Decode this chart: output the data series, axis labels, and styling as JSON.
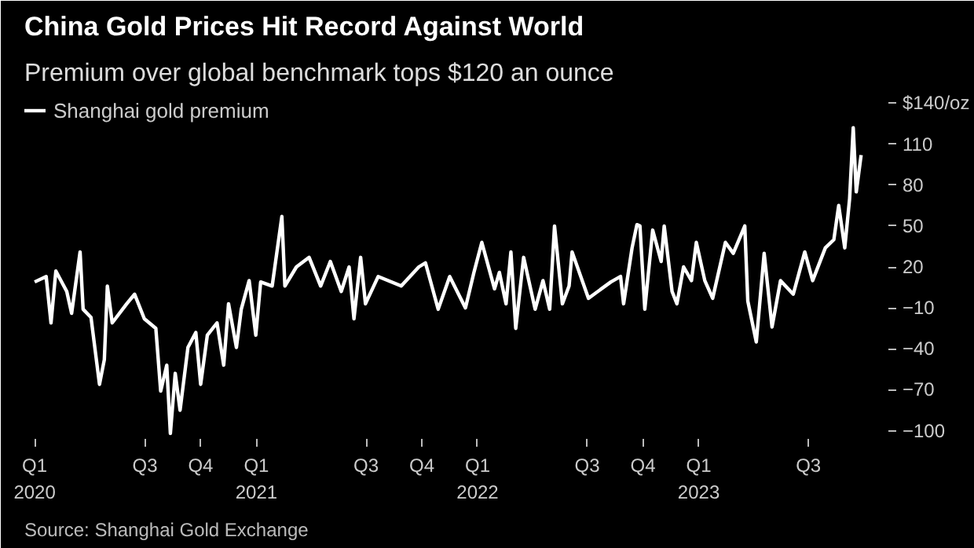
{
  "chart_data": {
    "type": "line",
    "title": "China Gold Prices Hit Record Against World",
    "subtitle": "Premium over global benchmark tops $120 an ounce",
    "annotations": [
      "Source: Shanghai Gold Exchange"
    ],
    "x": [
      "2020-01-01",
      "2020-01-20",
      "2020-01-28",
      "2020-02-05",
      "2020-02-23",
      "2020-03-02",
      "2020-03-16",
      "2020-03-21",
      "2020-04-03",
      "2020-04-17",
      "2020-04-25",
      "2020-04-30",
      "2020-05-08",
      "2020-06-01",
      "2020-06-14",
      "2020-06-30",
      "2020-07-19",
      "2020-07-27",
      "2020-08-06",
      "2020-08-12",
      "2020-08-20",
      "2020-08-28",
      "2020-09-10",
      "2020-09-23",
      "2020-10-01",
      "2020-10-12",
      "2020-10-28",
      "2020-11-08",
      "2020-11-16",
      "2020-11-29",
      "2020-12-07",
      "2020-12-20",
      "2020-12-31",
      "2021-01-08",
      "2021-01-27",
      "2021-02-12",
      "2021-02-17",
      "2021-03-08",
      "2021-03-29",
      "2021-04-17",
      "2021-05-03",
      "2021-05-21",
      "2021-06-03",
      "2021-06-11",
      "2021-06-22",
      "2021-06-30",
      "2021-07-21",
      "2021-08-28",
      "2021-09-26",
      "2021-10-07",
      "2021-10-28",
      "2021-11-16",
      "2021-12-12",
      "2021-12-26",
      "2022-01-08",
      "2022-01-29",
      "2022-02-06",
      "2022-02-17",
      "2022-02-25",
      "2022-03-05",
      "2022-03-18",
      "2022-04-06",
      "2022-04-19",
      "2022-04-30",
      "2022-05-08",
      "2022-05-21",
      "2022-06-01",
      "2022-06-06",
      "2022-07-03",
      "2022-08-09",
      "2022-08-25",
      "2022-08-30",
      "2022-09-13",
      "2022-09-21",
      "2022-09-26",
      "2022-10-04",
      "2022-10-17",
      "2022-10-31",
      "2022-11-05",
      "2022-11-18",
      "2022-11-26",
      "2022-12-07",
      "2022-12-20",
      "2022-12-28",
      "2023-01-11",
      "2023-01-24",
      "2023-02-14",
      "2023-02-27",
      "2023-03-18",
      "2023-03-23",
      "2023-04-06",
      "2023-04-19",
      "2023-05-02",
      "2023-05-16",
      "2023-06-06",
      "2023-06-25",
      "2023-07-08",
      "2023-07-29",
      "2023-08-12",
      "2023-08-20",
      "2023-08-30",
      "2023-09-07",
      "2023-09-13",
      "2023-09-18",
      "2023-09-26"
    ],
    "series": [
      {
        "name": "Shanghai gold premium",
        "color": "#ffffff",
        "values": [
          9,
          13,
          -21,
          17,
          2,
          -14,
          31,
          -11,
          -17,
          -66,
          -48,
          6,
          -21,
          -7,
          0,
          -18,
          -25,
          -71,
          -52,
          -102,
          -58,
          -85,
          -39,
          -28,
          -66,
          -30,
          -21,
          -52,
          -7,
          -39,
          -11,
          10,
          -30,
          9,
          6,
          57,
          6,
          20,
          27,
          6,
          24,
          2,
          20,
          -18,
          27,
          -7,
          13,
          6,
          20,
          23,
          -11,
          13,
          -10,
          16,
          38,
          4,
          16,
          -7,
          31,
          -25,
          27,
          -11,
          10,
          -11,
          50,
          -7,
          6,
          31,
          -3,
          9,
          13,
          -7,
          34,
          51,
          50,
          -11,
          47,
          24,
          50,
          2,
          -7,
          20,
          10,
          38,
          10,
          -3,
          38,
          30,
          50,
          -5,
          -35,
          30,
          -24,
          10,
          0,
          31,
          10,
          34,
          40,
          65,
          34,
          70,
          122,
          75,
          102
        ]
      }
    ],
    "xlim": [
      "2019-12-15",
      "2023-11-10"
    ],
    "xticks": [
      {
        "value": "2020-01-01",
        "label": "Q1\n2020"
      },
      {
        "value": "2020-07-01",
        "label": "Q3"
      },
      {
        "value": "2020-10-01",
        "label": "Q4"
      },
      {
        "value": "2021-01-01",
        "label": "Q1\n2021"
      },
      {
        "value": "2021-07-01",
        "label": "Q3"
      },
      {
        "value": "2021-10-01",
        "label": "Q4"
      },
      {
        "value": "2022-01-01",
        "label": "Q1\n2022"
      },
      {
        "value": "2022-07-01",
        "label": "Q3"
      },
      {
        "value": "2022-10-01",
        "label": "Q4"
      },
      {
        "value": "2023-01-01",
        "label": "Q1\n2023"
      },
      {
        "value": "2023-07-01",
        "label": "Q3"
      }
    ],
    "ylim": [
      -106,
      146
    ],
    "yticks": [
      -100,
      -70,
      -40,
      -10,
      20,
      50,
      80,
      110,
      {
        "value": 140,
        "label": "$140/oz"
      }
    ],
    "grid": false,
    "legend": "top left",
    "line_style": "solid",
    "marker": "none"
  }
}
